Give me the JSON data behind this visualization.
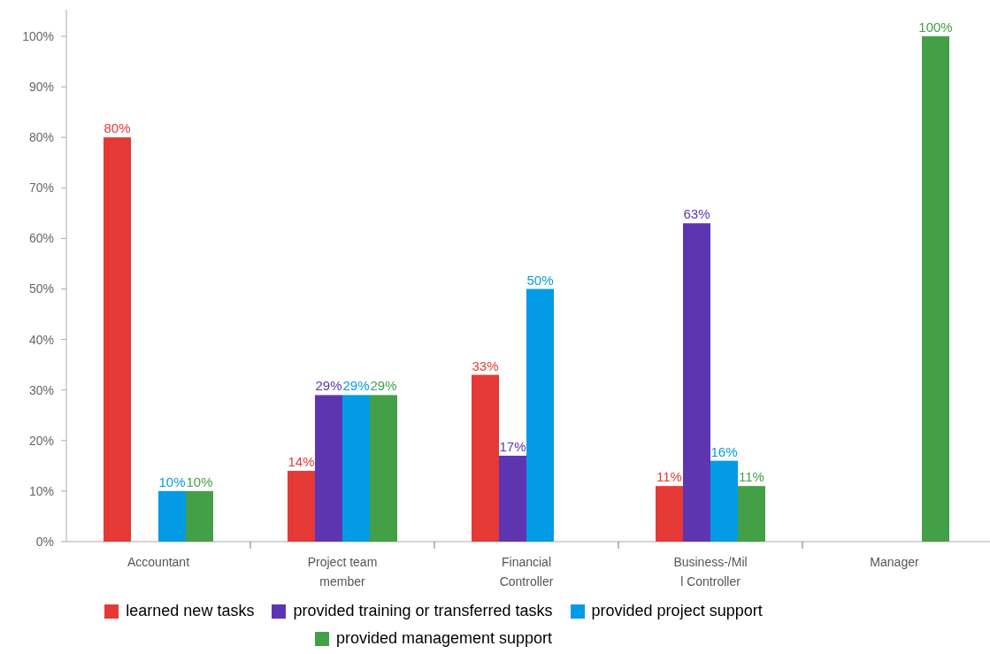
{
  "chart_data": {
    "type": "bar",
    "categories": [
      "Accountant",
      "Project team member",
      "Financial Controller",
      "Business-/Mill Controller",
      "Manager"
    ],
    "series": [
      {
        "name": "learned new tasks",
        "color": "#e53935",
        "values": [
          80,
          14,
          33,
          11,
          null
        ],
        "value_labels": [
          "80%",
          "14%",
          "33%",
          "11%",
          null
        ]
      },
      {
        "name": "provided training or transferred tasks",
        "color": "#5e35b1",
        "values": [
          null,
          29,
          17,
          63,
          null
        ],
        "value_labels": [
          null,
          "29%",
          "17%",
          "63%",
          null
        ]
      },
      {
        "name": "provided project support",
        "color": "#039be5",
        "values": [
          10,
          29,
          50,
          16,
          null
        ],
        "value_labels": [
          "10%",
          "29%",
          "50%",
          "16%",
          null
        ]
      },
      {
        "name": "provided management support",
        "color": "#43a047",
        "values": [
          10,
          29,
          null,
          11,
          100
        ],
        "value_labels": [
          "10%",
          "29%",
          null,
          "11%",
          "100%"
        ]
      }
    ],
    "ylim": [
      0,
      100
    ],
    "yticks": [
      {
        "value": 0,
        "label": "0%"
      },
      {
        "value": 10,
        "label": "10%"
      },
      {
        "value": 20,
        "label": "20%"
      },
      {
        "value": 30,
        "label": "30%"
      },
      {
        "value": 40,
        "label": "40%"
      },
      {
        "value": 50,
        "label": "50%"
      },
      {
        "value": 60,
        "label": "60%"
      },
      {
        "value": 70,
        "label": "70%"
      },
      {
        "value": 80,
        "label": "80%"
      },
      {
        "value": 90,
        "label": "90%"
      },
      {
        "value": 100,
        "label": "100%"
      }
    ],
    "grid": false,
    "legend": "bottom"
  }
}
